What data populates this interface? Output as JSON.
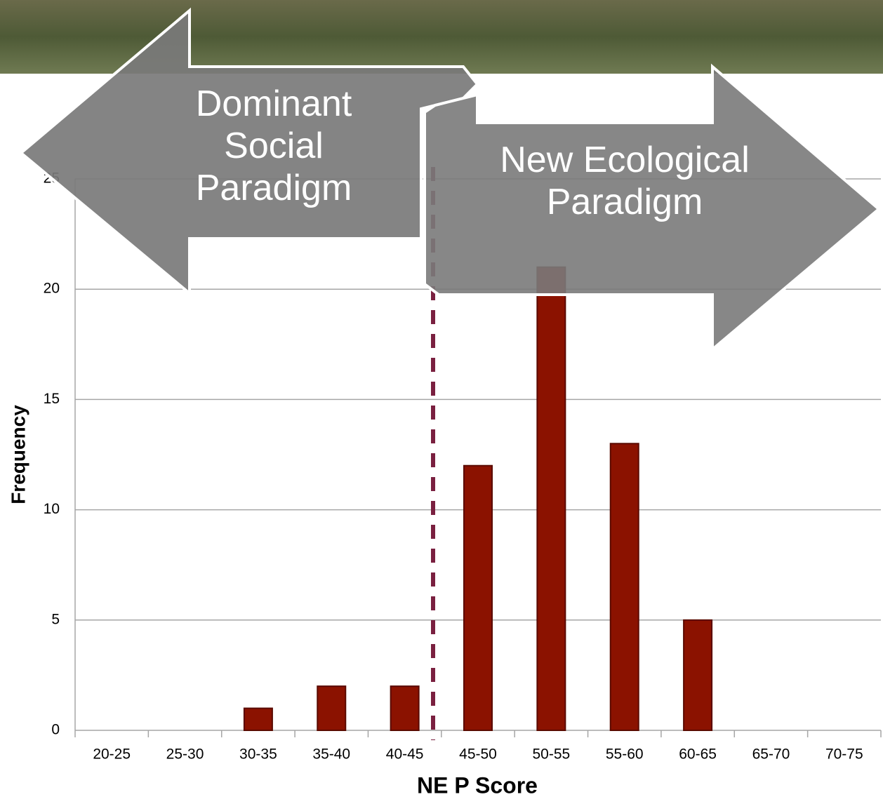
{
  "chart_data": {
    "type": "bar",
    "x_label": "NE P Score",
    "y_label": "Frequency",
    "categories": [
      "20-25",
      "25-30",
      "30-35",
      "35-40",
      "40-45",
      "45-50",
      "50-55",
      "55-60",
      "60-65",
      "65-70",
      "70-75"
    ],
    "values": [
      0,
      0,
      1,
      2,
      2,
      12,
      21,
      13,
      5,
      0,
      0
    ],
    "color": "#8b1200",
    "ylim": [
      0,
      25
    ],
    "yticks": [
      0,
      5,
      10,
      15,
      20,
      25
    ],
    "grid": true,
    "annotations": [
      "Dominant Social Paradigm",
      "New Ecological Paradigm"
    ]
  }
}
